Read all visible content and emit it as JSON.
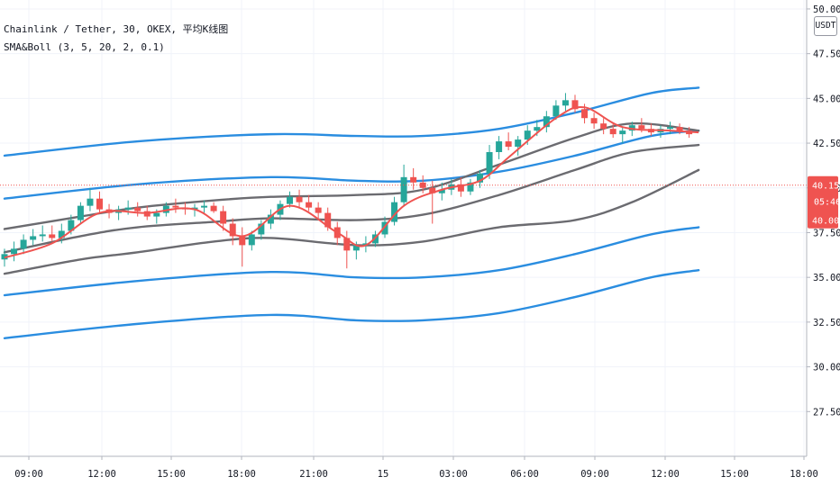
{
  "legend": {
    "symbol_line": "Chainlink / Tether, 30, OKEX, 平均K线图",
    "indicator_line": "SMA&Boll (3, 5, 20, 2, 0.1)"
  },
  "currency_badge": "USDT",
  "price_tag": {
    "price": "40.154",
    "countdown": "05:46",
    "alt_price": "40.002"
  },
  "colors": {
    "up": "#26a69a",
    "down": "#ef5350",
    "boll_outer": "#2a8de0",
    "boll_inner": "#6b6b70",
    "sma": "#ef5350",
    "price_tag": "#ef5350",
    "grid": "#f0f3fa"
  },
  "chart_data": {
    "type": "candlestick",
    "x_axis_labels": [
      "09:00",
      "12:00",
      "15:00",
      "18:00",
      "21:00",
      "15",
      "03:00",
      "06:00",
      "09:00",
      "12:00",
      "15:00",
      "18:00"
    ],
    "y_axis_labels": [
      "27.500",
      "30.000",
      "32.500",
      "35.000",
      "37.500",
      "40.000",
      "42.500",
      "45.000",
      "47.500",
      "50.000"
    ],
    "ylim": [
      25.0,
      50.5
    ],
    "ohlc": [
      [
        36.0,
        36.6,
        35.6,
        36.3
      ],
      [
        36.3,
        37.0,
        35.9,
        36.6
      ],
      [
        36.6,
        37.4,
        36.3,
        37.1
      ],
      [
        37.1,
        37.7,
        36.8,
        37.3
      ],
      [
        37.3,
        37.9,
        37.0,
        37.4
      ],
      [
        37.4,
        37.9,
        37.0,
        37.2
      ],
      [
        37.2,
        38.0,
        36.9,
        37.6
      ],
      [
        37.6,
        38.5,
        37.4,
        38.2
      ],
      [
        38.2,
        39.2,
        38.0,
        39.0
      ],
      [
        39.0,
        40.0,
        38.7,
        39.4
      ],
      [
        39.4,
        39.8,
        38.6,
        38.8
      ],
      [
        38.8,
        39.1,
        38.3,
        38.6
      ],
      [
        38.6,
        39.0,
        38.2,
        38.8
      ],
      [
        38.8,
        39.3,
        38.5,
        38.9
      ],
      [
        38.9,
        39.2,
        38.4,
        38.7
      ],
      [
        38.7,
        39.0,
        38.2,
        38.4
      ],
      [
        38.4,
        38.8,
        38.0,
        38.6
      ],
      [
        38.6,
        39.2,
        38.4,
        39.0
      ],
      [
        39.0,
        39.4,
        38.6,
        38.9
      ],
      [
        38.9,
        39.2,
        38.5,
        38.8
      ],
      [
        38.8,
        39.1,
        38.4,
        38.9
      ],
      [
        38.9,
        39.3,
        38.6,
        39.0
      ],
      [
        39.0,
        39.2,
        38.6,
        38.7
      ],
      [
        38.7,
        39.0,
        37.6,
        38.0
      ],
      [
        38.0,
        38.3,
        36.8,
        37.3
      ],
      [
        37.3,
        37.8,
        35.6,
        36.8
      ],
      [
        36.8,
        37.6,
        36.5,
        37.4
      ],
      [
        37.4,
        38.2,
        37.1,
        38.0
      ],
      [
        38.0,
        38.8,
        37.7,
        38.5
      ],
      [
        38.5,
        39.3,
        38.2,
        39.1
      ],
      [
        39.1,
        39.8,
        38.9,
        39.5
      ],
      [
        39.5,
        39.9,
        38.9,
        39.2
      ],
      [
        39.2,
        39.6,
        38.7,
        38.9
      ],
      [
        38.9,
        39.2,
        38.3,
        38.6
      ],
      [
        38.6,
        38.9,
        37.6,
        37.8
      ],
      [
        37.8,
        38.1,
        36.8,
        37.2
      ],
      [
        37.2,
        37.6,
        35.5,
        36.5
      ],
      [
        36.5,
        37.0,
        36.0,
        36.8
      ],
      [
        36.8,
        37.3,
        36.4,
        36.9
      ],
      [
        36.9,
        37.6,
        36.7,
        37.4
      ],
      [
        37.4,
        38.4,
        37.2,
        38.1
      ],
      [
        38.1,
        39.5,
        37.9,
        39.2
      ],
      [
        39.2,
        41.3,
        39.0,
        40.6
      ],
      [
        40.6,
        41.1,
        39.9,
        40.3
      ],
      [
        40.3,
        40.7,
        39.7,
        40.0
      ],
      [
        40.0,
        40.4,
        38.0,
        39.7
      ],
      [
        39.7,
        40.3,
        39.3,
        39.9
      ],
      [
        39.9,
        40.5,
        39.6,
        40.2
      ],
      [
        40.2,
        40.6,
        39.5,
        39.8
      ],
      [
        39.8,
        40.5,
        39.6,
        40.3
      ],
      [
        40.3,
        41.0,
        40.0,
        40.8
      ],
      [
        40.8,
        42.4,
        40.5,
        42.0
      ],
      [
        42.0,
        42.9,
        41.6,
        42.6
      ],
      [
        42.6,
        43.1,
        42.1,
        42.3
      ],
      [
        42.3,
        42.9,
        41.8,
        42.7
      ],
      [
        42.7,
        43.5,
        42.4,
        43.2
      ],
      [
        43.2,
        43.8,
        42.9,
        43.4
      ],
      [
        43.4,
        44.3,
        43.1,
        44.0
      ],
      [
        44.0,
        44.9,
        43.8,
        44.6
      ],
      [
        44.6,
        45.3,
        44.3,
        44.9
      ],
      [
        44.9,
        45.2,
        44.2,
        44.4
      ],
      [
        44.4,
        44.7,
        43.6,
        43.9
      ],
      [
        43.9,
        44.2,
        43.3,
        43.6
      ],
      [
        43.6,
        43.9,
        43.0,
        43.3
      ],
      [
        43.3,
        43.6,
        42.8,
        43.0
      ],
      [
        43.0,
        43.4,
        42.5,
        43.2
      ],
      [
        43.2,
        43.7,
        42.9,
        43.5
      ],
      [
        43.5,
        43.9,
        43.1,
        43.3
      ],
      [
        43.3,
        43.6,
        42.9,
        43.1
      ],
      [
        43.1,
        43.5,
        42.8,
        43.3
      ],
      [
        43.3,
        43.7,
        43.0,
        43.4
      ],
      [
        43.4,
        43.6,
        43.0,
        43.2
      ],
      [
        43.2,
        43.4,
        42.8,
        43.0
      ]
    ],
    "series": [
      {
        "name": "",
        "kind": "boll-outer-upper",
        "points": [
          [
            0,
            41.8
          ],
          [
            14,
            42.6
          ],
          [
            28,
            43.0
          ],
          [
            37,
            42.9
          ],
          [
            44,
            42.9
          ],
          [
            52,
            43.3
          ],
          [
            60,
            44.2
          ],
          [
            68,
            45.3
          ],
          [
            73,
            45.6
          ]
        ]
      },
      {
        "name": "",
        "kind": "boll-outer-lower",
        "points": [
          [
            0,
            34.0
          ],
          [
            14,
            34.8
          ],
          [
            28,
            35.3
          ],
          [
            37,
            35.0
          ],
          [
            44,
            35.0
          ],
          [
            52,
            35.4
          ],
          [
            60,
            36.3
          ],
          [
            68,
            37.4
          ],
          [
            73,
            37.8
          ]
        ]
      },
      {
        "name": "",
        "kind": "boll-mid-upper",
        "points": [
          [
            0,
            39.4
          ],
          [
            14,
            40.2
          ],
          [
            28,
            40.6
          ],
          [
            37,
            40.4
          ],
          [
            44,
            40.4
          ],
          [
            52,
            40.9
          ],
          [
            60,
            41.8
          ],
          [
            68,
            42.9
          ],
          [
            73,
            43.2
          ]
        ]
      },
      {
        "name": "",
        "kind": "boll-mid-lower",
        "points": [
          [
            0,
            31.6
          ],
          [
            14,
            32.4
          ],
          [
            28,
            32.9
          ],
          [
            37,
            32.6
          ],
          [
            44,
            32.6
          ],
          [
            52,
            33.0
          ],
          [
            60,
            33.9
          ],
          [
            68,
            35.0
          ],
          [
            73,
            35.4
          ]
        ]
      },
      {
        "name": "",
        "kind": "boll-inner-upper",
        "points": [
          [
            0,
            37.7
          ],
          [
            8,
            38.4
          ],
          [
            14,
            38.9
          ],
          [
            22,
            39.3
          ],
          [
            28,
            39.5
          ],
          [
            37,
            39.6
          ],
          [
            44,
            39.9
          ],
          [
            52,
            41.3
          ],
          [
            60,
            42.8
          ],
          [
            66,
            43.6
          ],
          [
            73,
            43.2
          ]
        ]
      },
      {
        "name": "",
        "kind": "boll-inner-mid",
        "points": [
          [
            0,
            36.4
          ],
          [
            8,
            37.3
          ],
          [
            14,
            37.8
          ],
          [
            22,
            38.1
          ],
          [
            28,
            38.3
          ],
          [
            37,
            38.2
          ],
          [
            44,
            38.5
          ],
          [
            52,
            39.6
          ],
          [
            60,
            41.0
          ],
          [
            66,
            42.0
          ],
          [
            73,
            42.4
          ]
        ]
      },
      {
        "name": "",
        "kind": "boll-inner-lower",
        "points": [
          [
            0,
            35.2
          ],
          [
            8,
            36.0
          ],
          [
            14,
            36.4
          ],
          [
            22,
            37.0
          ],
          [
            28,
            37.2
          ],
          [
            37,
            36.8
          ],
          [
            44,
            37.0
          ],
          [
            52,
            37.8
          ],
          [
            60,
            38.2
          ],
          [
            66,
            39.2
          ],
          [
            73,
            41.0
          ]
        ]
      },
      {
        "name": "",
        "kind": "sma",
        "points": [
          [
            0,
            36.1
          ],
          [
            5,
            36.9
          ],
          [
            10,
            38.6
          ],
          [
            15,
            38.6
          ],
          [
            20,
            38.8
          ],
          [
            25,
            37.3
          ],
          [
            30,
            39.0
          ],
          [
            35,
            37.5
          ],
          [
            38,
            36.8
          ],
          [
            42,
            39.0
          ],
          [
            46,
            39.9
          ],
          [
            50,
            40.4
          ],
          [
            53,
            41.7
          ],
          [
            58,
            43.9
          ],
          [
            61,
            44.5
          ],
          [
            65,
            43.4
          ],
          [
            70,
            43.2
          ],
          [
            73,
            43.1
          ]
        ]
      }
    ]
  }
}
